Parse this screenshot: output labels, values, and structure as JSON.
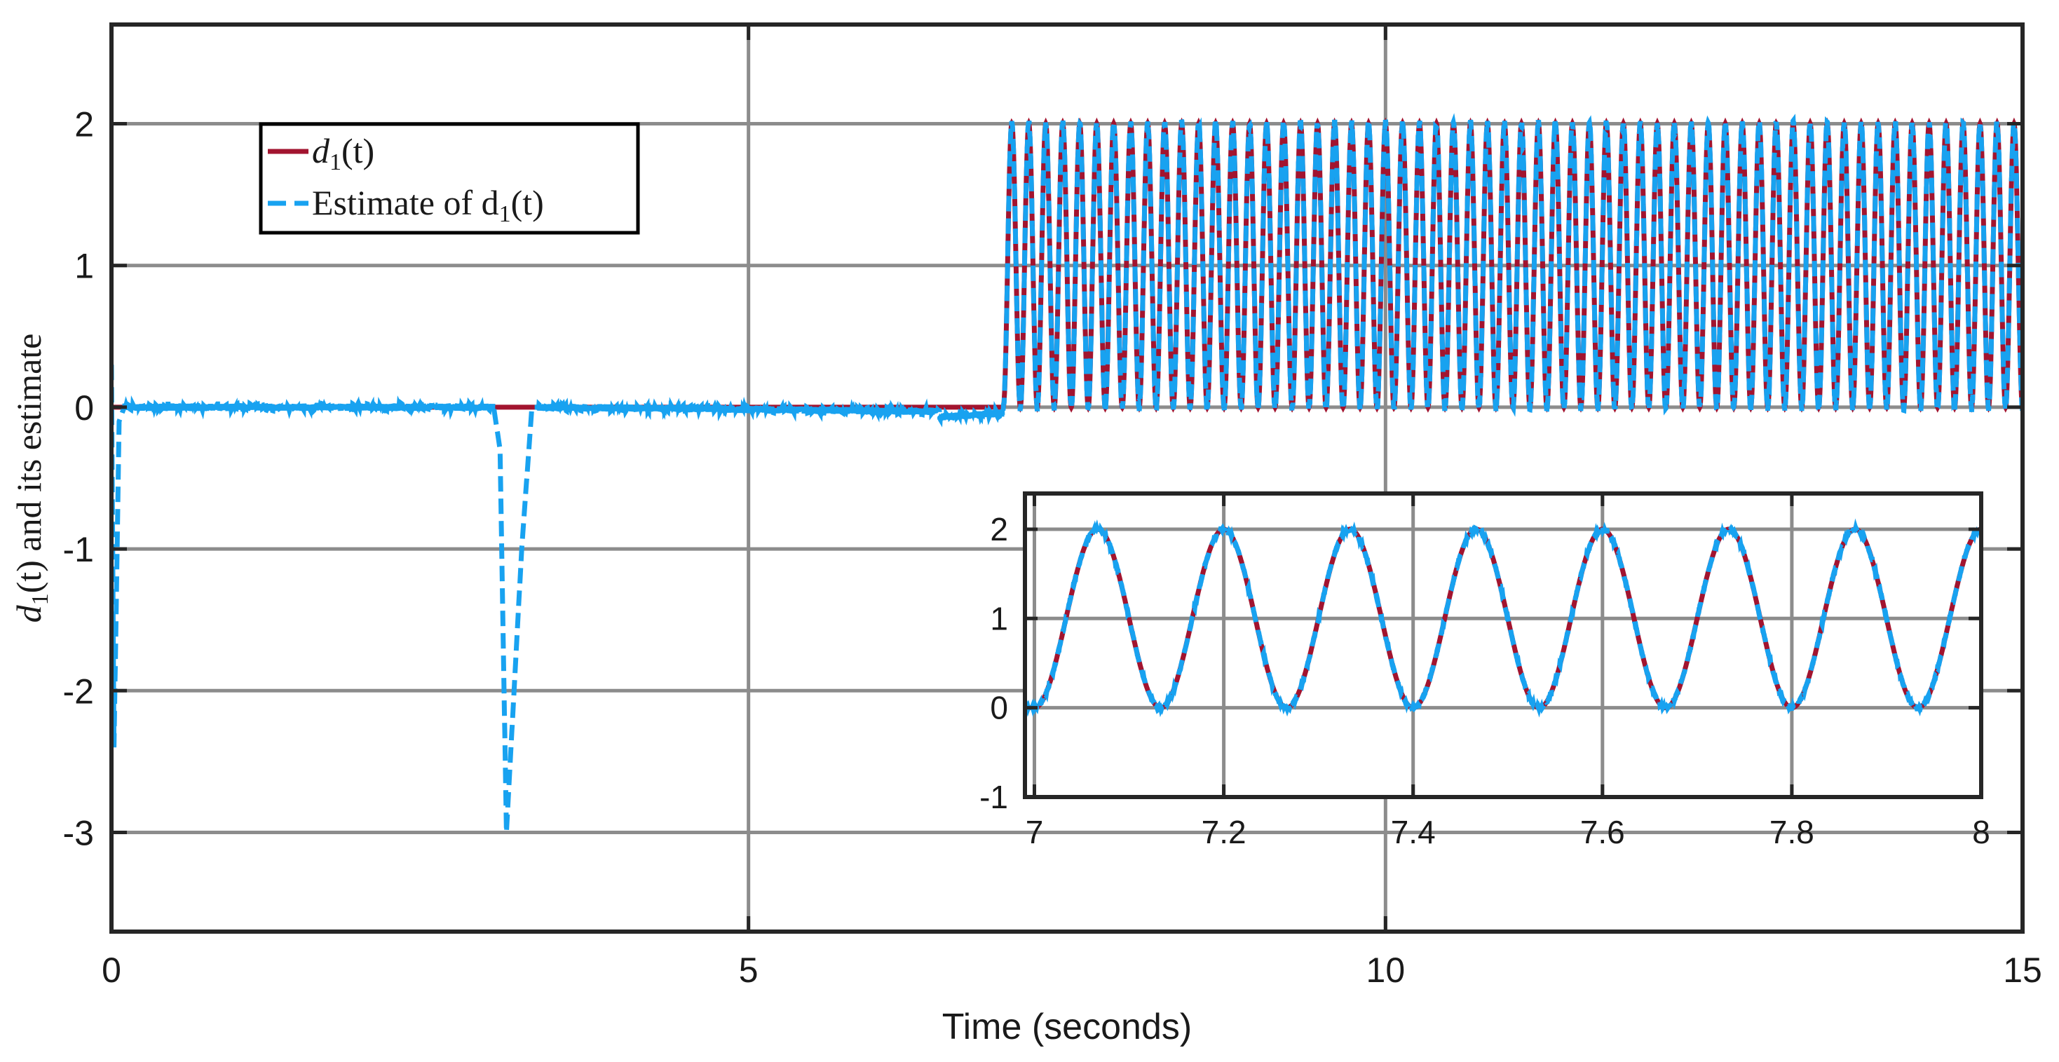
{
  "chart_data": [
    {
      "type": "line",
      "xlabel": "Time (seconds)",
      "ylabel_prefix": "d",
      "ylabel_sub": "1",
      "ylabel_suffix": "(t) and its estimate",
      "xlim": [
        0,
        15
      ],
      "ylim": [
        -3.7,
        2.7
      ],
      "xticks": [
        0,
        5,
        10,
        15
      ],
      "xtick_labels": [
        "0",
        "5",
        "10",
        "15"
      ],
      "yticks": [
        2,
        1,
        0,
        -1,
        -2,
        -3
      ],
      "ytick_labels": [
        "2",
        "1",
        "0",
        "-1",
        "-2",
        "-3"
      ],
      "grid": true,
      "legend_position": "top-left",
      "series": [
        {
          "name": "d1(t)",
          "legend_prefix": "d",
          "legend_sub": "1",
          "legend_suffix": "(t)",
          "color": "#a2142f",
          "style": "solid",
          "description": "0 for t < 7; then 1 - cos(2*pi*7.5*(t-7)) oscillating between 0 and 2",
          "switch_time": 7,
          "frequency_hz": 7.5,
          "amplitude": 1,
          "offset": 1
        },
        {
          "name": "Estimate of d1(t)",
          "legend_prefix": "Estimate of d",
          "legend_sub": "1",
          "legend_suffix": "(t)",
          "color": "#18a2f0",
          "style": "dashed",
          "x": [
            0,
            0.02,
            0.06,
            0.1,
            3.0,
            3.05,
            3.1,
            3.22,
            3.3,
            3.35,
            6.5,
            7.0
          ],
          "y": [
            0.3,
            -2.4,
            -0.1,
            0.0,
            0.0,
            -0.3,
            -3.0,
            -1.0,
            0.0,
            0.0,
            -0.03,
            0.0
          ]
        }
      ]
    },
    {
      "type": "line",
      "title": "inset",
      "xlim": [
        6.99,
        8.0
      ],
      "ylim": [
        -1,
        2.4
      ],
      "xticks": [
        7,
        7.2,
        7.4,
        7.6,
        7.8,
        8
      ],
      "xtick_labels": [
        "7",
        "7.2",
        "7.4",
        "7.6",
        "7.8",
        "8"
      ],
      "yticks": [
        2,
        1,
        0,
        -1
      ],
      "ytick_labels": [
        "2",
        "1",
        "0",
        "-1"
      ],
      "grid": true
    }
  ]
}
